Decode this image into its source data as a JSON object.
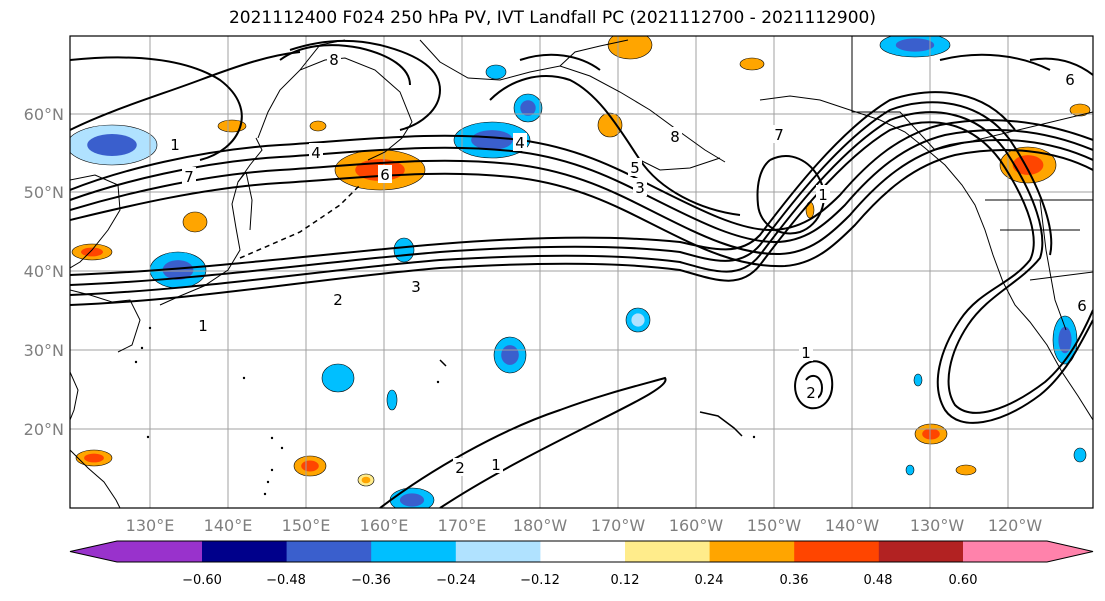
{
  "title": "2021112400 F024 250 hPa PV, IVT Landfall PC (2021112700 - 2021112900)",
  "lat_labels": [
    "60°N",
    "50°N",
    "40°N",
    "30°N",
    "20°N"
  ],
  "lon_labels": [
    "130°E",
    "140°E",
    "150°E",
    "160°E",
    "170°E",
    "180°W",
    "170°W",
    "160°W",
    "150°W",
    "140°W",
    "130°W",
    "120°W"
  ],
  "colorbar": {
    "ticks": [
      "−0.60",
      "−0.48",
      "−0.36",
      "−0.24",
      "−0.12",
      "0.12",
      "0.24",
      "0.36",
      "0.48",
      "0.60"
    ],
    "colors": [
      "#9932cc",
      "#00008b",
      "#3a5fcd",
      "#00bfff",
      "#b0e2ff",
      "#ffffff",
      "#ffec8b",
      "#ffa500",
      "#ff4500",
      "#b22222",
      "#ff82ab"
    ]
  },
  "contour_labels": [
    "1",
    "2",
    "3",
    "4",
    "5",
    "6",
    "7",
    "8"
  ],
  "fill_colors": {
    "neg_strong": "#3a5fcd",
    "neg_mid": "#00bfff",
    "neg_weak": "#b0e2ff",
    "pos_weak": "#ffec8b",
    "pos_mid": "#ffa500",
    "pos_strong": "#ff4500"
  }
}
